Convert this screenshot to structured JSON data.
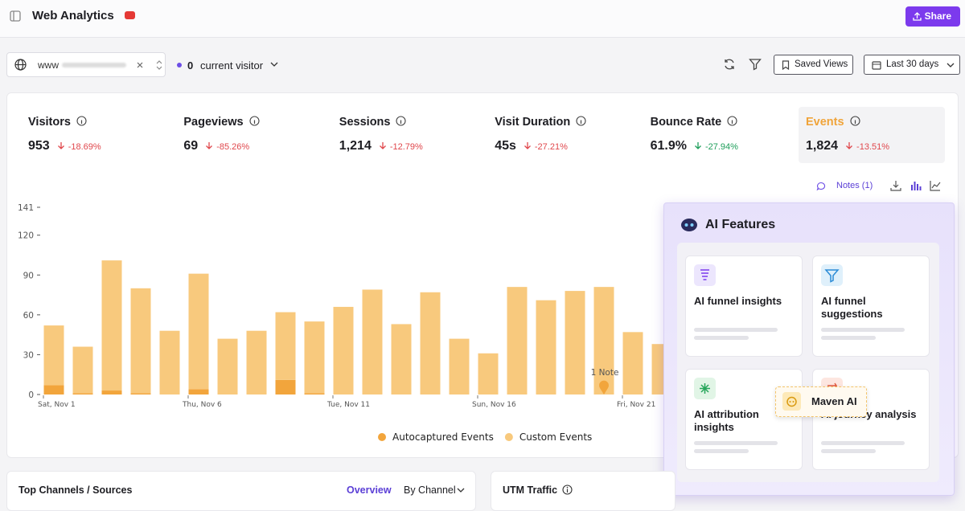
{
  "header": {
    "title": "Web Analytics",
    "share": "Share"
  },
  "toolbar": {
    "site": "www",
    "visitor_count": "0",
    "visitor_label": "current visitor",
    "saved_views": "Saved Views",
    "date_range": "Last 30 days"
  },
  "metrics": [
    {
      "label": "Visitors",
      "value": "953",
      "change": "-18.69%"
    },
    {
      "label": "Pageviews",
      "value": "69",
      "change": "-85.26%"
    },
    {
      "label": "Sessions",
      "value": "1,214",
      "change": "-12.79%"
    },
    {
      "label": "Visit Duration",
      "value": "45s",
      "change": "-27.21%"
    },
    {
      "label": "Bounce Rate",
      "value": "61.9%",
      "change": "-27.94%"
    },
    {
      "label": "Events",
      "value": "1,824",
      "change": "-13.51%"
    }
  ],
  "chart_tools": {
    "notes": "Notes (1)"
  },
  "chart_data": {
    "type": "bar",
    "stacked": true,
    "categories": [
      "Sat, Nov 1",
      null,
      null,
      null,
      null,
      "Thu, Nov 6",
      null,
      null,
      null,
      null,
      "Tue, Nov 11",
      null,
      null,
      null,
      null,
      "Sun, Nov 16",
      null,
      null,
      null,
      null,
      "Fri, Nov 21",
      null
    ],
    "series": [
      {
        "name": "Autocaptured Events",
        "color": "#f2a53c",
        "values": [
          7,
          1,
          3,
          1,
          0,
          4,
          0,
          0,
          11,
          1,
          0,
          0,
          0,
          0,
          0,
          0,
          0,
          0,
          0,
          0,
          0,
          0
        ]
      },
      {
        "name": "Custom Events",
        "color": "#f8c97d",
        "values": [
          45,
          35,
          98,
          79,
          48,
          87,
          42,
          48,
          51,
          54,
          66,
          79,
          53,
          77,
          42,
          31,
          81,
          71,
          78,
          81,
          47,
          38
        ]
      }
    ],
    "ylim": [
      0,
      141
    ],
    "yticks": [
      0,
      30,
      60,
      90,
      120,
      141
    ],
    "annotation": "1 Note"
  },
  "ai_panel": {
    "title": "AI Features",
    "cards": [
      "AI funnel insights",
      "AI funnel suggestions",
      "AI attribution insights",
      "AI journey analysis"
    ],
    "badge": "Maven AI"
  },
  "bottom": {
    "left_title": "Top Channels / Sources",
    "overview": "Overview",
    "by_channel": "By Channel",
    "right_title": "UTM Traffic"
  }
}
